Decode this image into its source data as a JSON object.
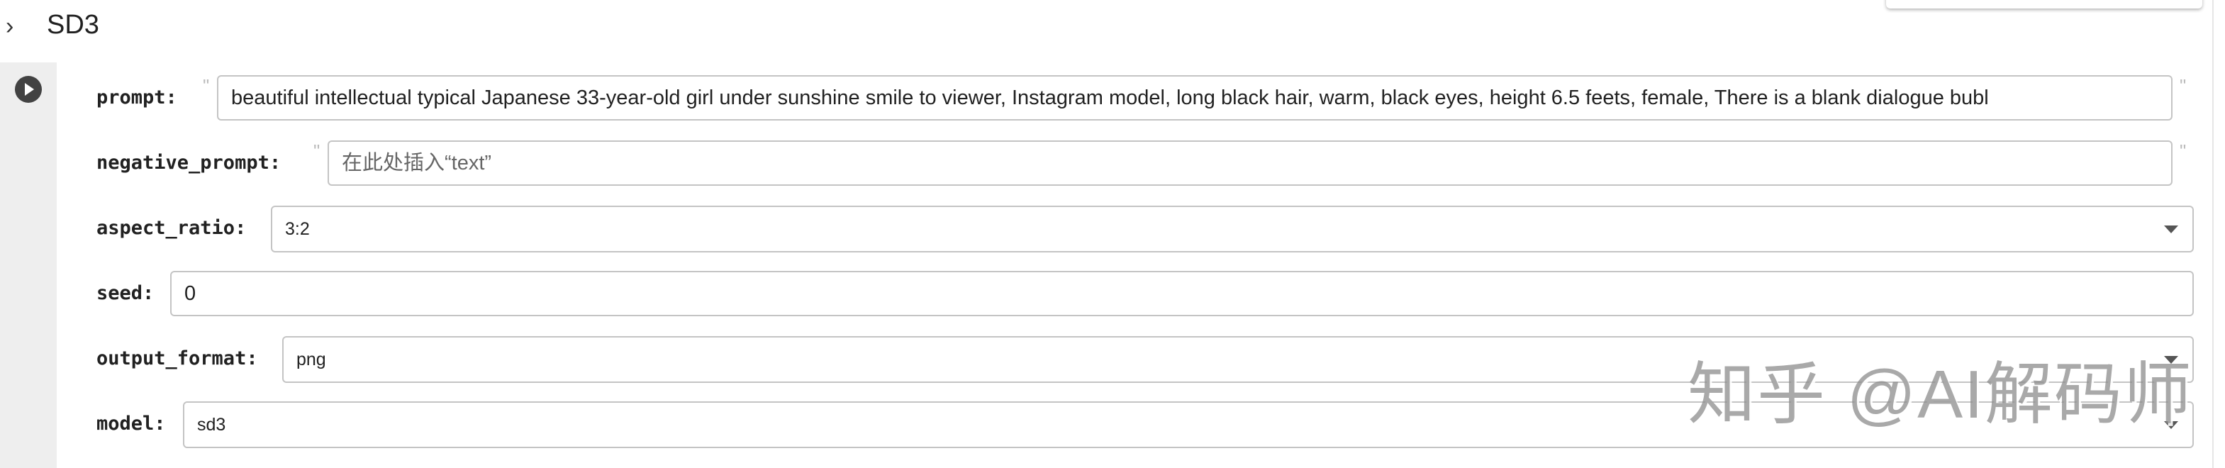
{
  "section": {
    "title": "SD3",
    "expand_icon": "chevron-right-icon"
  },
  "run_icon": "play-circle-icon",
  "form": {
    "prompt": {
      "label": "prompt:",
      "value": "beautiful intellectual typical Japanese 33-year-old girl under sunshine smile to viewer, Instagram model, long black hair, warm, black eyes, height 6.5 feets, female, There is a blank dialogue bubl",
      "quote": "\""
    },
    "negative_prompt": {
      "label": "negative_prompt:",
      "placeholder": "在此处插入“text”",
      "quote": "\""
    },
    "aspect_ratio": {
      "label": "aspect_ratio:",
      "value": "3:2"
    },
    "seed": {
      "label": "seed:",
      "value": "0"
    },
    "output_format": {
      "label": "output_format:",
      "value": "png"
    },
    "model": {
      "label": "model:",
      "value": "sd3"
    }
  },
  "watermark": "知乎 @AI解码师"
}
